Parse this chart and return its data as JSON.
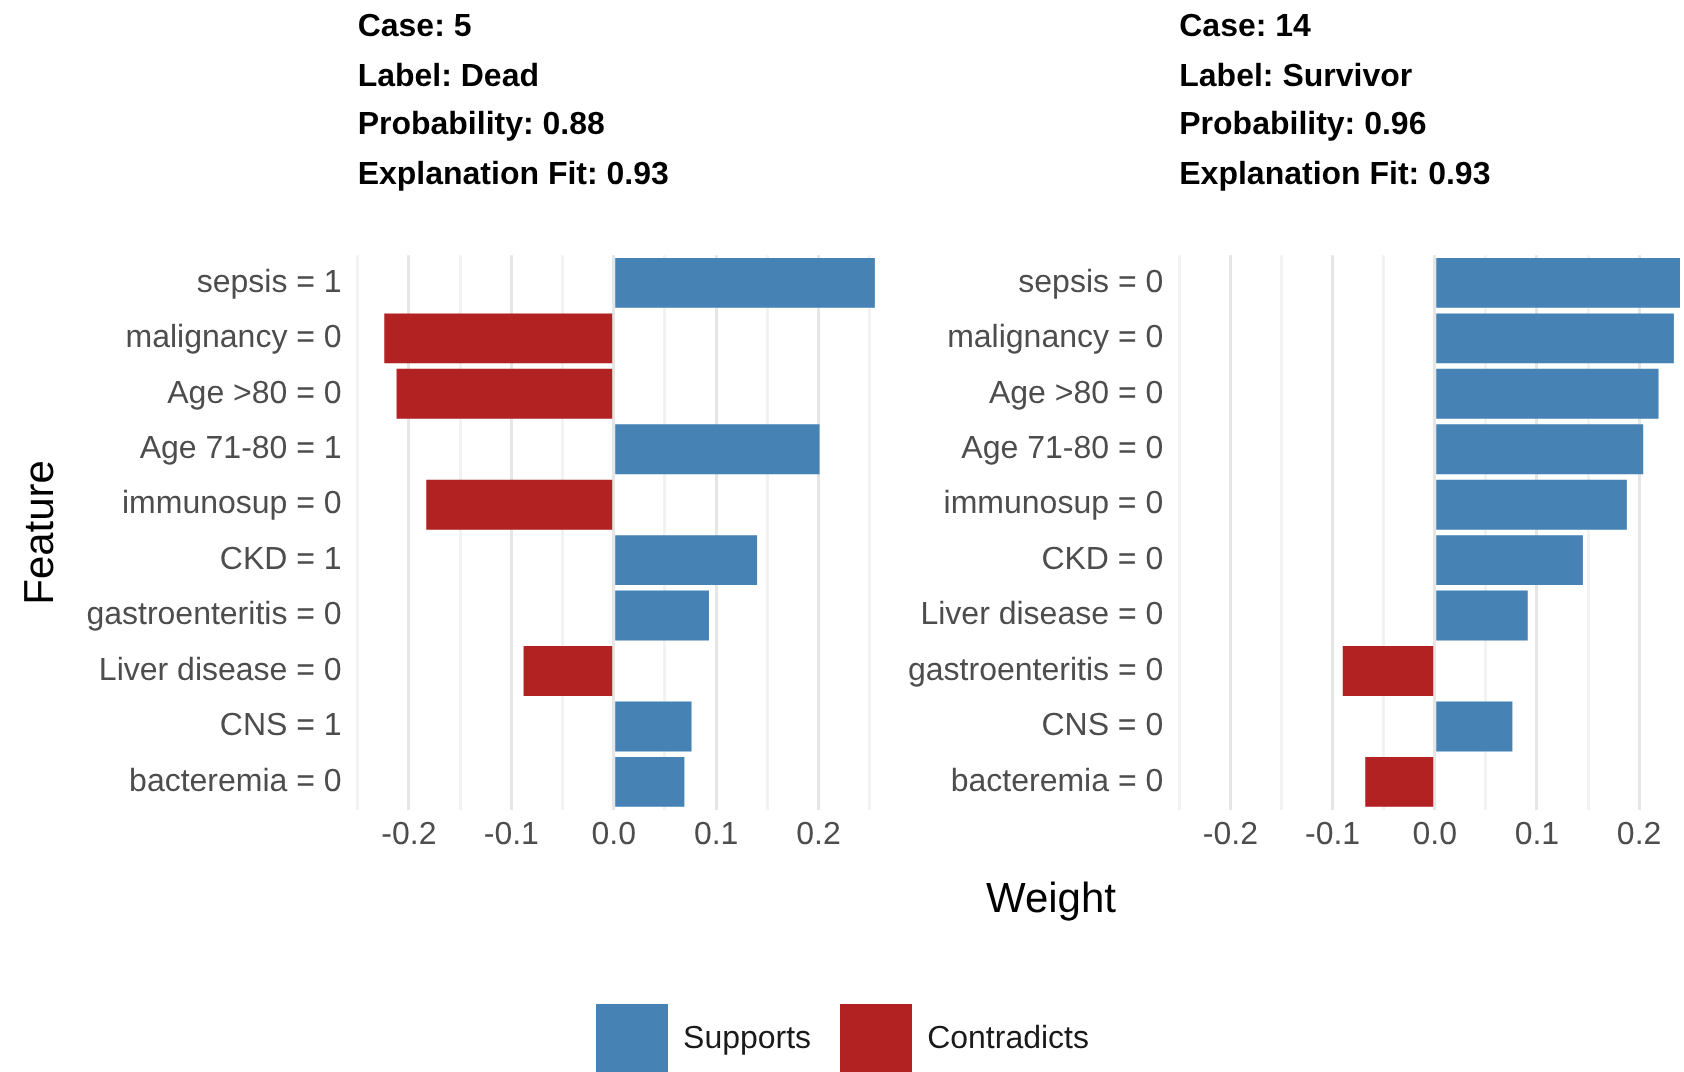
{
  "chart_data": [
    {
      "type": "bar",
      "orientation": "horizontal",
      "title": "Case: 5\nLabel: Dead\nProbability: 0.88\nExplanation Fit: 0.93",
      "xlabel": "Weight",
      "ylabel": "Feature",
      "categories": [
        "sepsis = 1",
        "malignancy = 0",
        "Age >80 = 0",
        "Age 71-80 = 1",
        "immunosup = 0",
        "CKD = 1",
        "gastroenteritis = 0",
        "Liver disease = 0",
        "CNS = 1",
        "bacteremia = 0"
      ],
      "series": [
        {
          "name": "Supports",
          "color": "#4682b4",
          "values": [
            0.255,
            null,
            null,
            0.201,
            null,
            0.14,
            0.093,
            null,
            0.076,
            0.069
          ]
        },
        {
          "name": "Contradicts",
          "color": "#b22222",
          "values": [
            null,
            -0.224,
            -0.212,
            null,
            -0.183,
            null,
            null,
            -0.088,
            null,
            null
          ]
        }
      ],
      "xlim": [
        -0.25,
        0.26
      ],
      "xticks": [
        {
          "value": -0.25,
          "label": null
        },
        -0.2,
        {
          "value": -0.15,
          "label": null
        },
        -0.1,
        {
          "value": -0.05,
          "label": null
        },
        {
          "value": 0,
          "label": "0.0"
        },
        {
          "value": 0.05,
          "label": null
        },
        0.1,
        {
          "value": 0.15,
          "label": null
        },
        0.2,
        {
          "value": 0.25,
          "label": null
        }
      ],
      "grid": "x",
      "legend": "bottom"
    },
    {
      "type": "bar",
      "orientation": "horizontal",
      "title": "Case: 14\nLabel: Survivor\nProbability: 0.96\nExplanation Fit: 0.93",
      "categories": [
        "sepsis = 0",
        "malignancy = 0",
        "Age >80 = 0",
        "Age 71-80 = 0",
        "immunosup = 0",
        "CKD = 0",
        "Liver disease = 0",
        "gastroenteritis = 0",
        "CNS = 0",
        "bacteremia = 0"
      ],
      "series": [
        {
          "name": "Supports",
          "color": "#4682b4",
          "values": [
            0.24,
            0.234,
            0.219,
            0.204,
            0.188,
            0.145,
            0.091,
            null,
            0.076,
            null
          ]
        },
        {
          "name": "Contradicts",
          "color": "#b22222",
          "values": [
            null,
            null,
            null,
            null,
            null,
            null,
            null,
            -0.09,
            null,
            -0.068
          ]
        }
      ],
      "xlim": [
        -0.25,
        0.24
      ],
      "xticks": [
        {
          "value": -0.25,
          "label": null
        },
        -0.2,
        {
          "value": -0.15,
          "label": null
        },
        -0.1,
        {
          "value": -0.05,
          "label": null
        },
        {
          "value": 0,
          "label": "0.0"
        },
        {
          "value": 0.05,
          "label": null
        },
        0.1,
        {
          "value": 0.15,
          "label": null
        },
        0.2
      ],
      "grid": "x",
      "legend": "bottom"
    }
  ]
}
